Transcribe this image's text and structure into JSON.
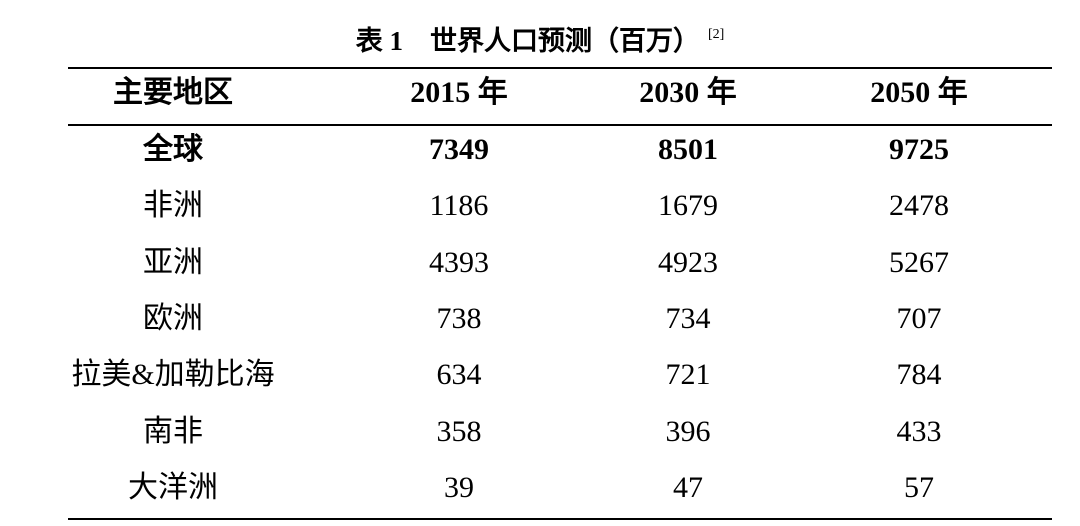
{
  "title": {
    "text": "表 1　世界人口预测（百万）",
    "note": "[2]"
  },
  "table": {
    "header": [
      "主要地区",
      "2015 年",
      "2030 年",
      "2050 年"
    ],
    "rows": [
      [
        "全球",
        "7349",
        "8501",
        "9725"
      ],
      [
        "非洲",
        "1186",
        "1679",
        "2478"
      ],
      [
        "亚洲",
        "4393",
        "4923",
        "5267"
      ],
      [
        "欧洲",
        "738",
        "734",
        "707"
      ],
      [
        "拉美&加勒比海",
        "634",
        "721",
        "784"
      ],
      [
        "南非",
        "358",
        "396",
        "433"
      ],
      [
        "大洋洲",
        "39",
        "47",
        "57"
      ]
    ]
  }
}
